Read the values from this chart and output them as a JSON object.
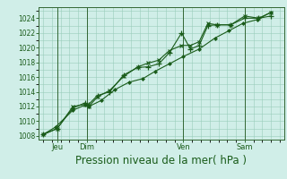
{
  "bg_color": "#d0eee8",
  "grid_color": "#99ccbb",
  "line_color": "#1a5c1a",
  "marker_color": "#1a5c1a",
  "xlabel": "Pression niveau de la mer( hPa )",
  "xlabel_fontsize": 8.5,
  "ylim": [
    1007.5,
    1025.5
  ],
  "yticks": [
    1008,
    1010,
    1012,
    1014,
    1016,
    1018,
    1020,
    1022,
    1024
  ],
  "day_labels": [
    "Jeu",
    "Dim",
    "Ven",
    "Sam"
  ],
  "day_positions": [
    16,
    50,
    160,
    230
  ],
  "vline_color": "#336633",
  "tick_color": "#1a5c1a",
  "axis_color": "#336633",
  "series1_x": [
    0,
    16,
    34,
    48,
    52,
    62,
    76,
    92,
    108,
    120,
    132,
    144,
    158,
    168,
    178,
    188,
    198,
    214,
    230,
    246,
    260
  ],
  "series1_y": [
    1008.2,
    1009.0,
    1011.8,
    1012.5,
    1012.3,
    1013.5,
    1014.0,
    1016.3,
    1017.3,
    1017.4,
    1017.8,
    1019.3,
    1022.0,
    1019.8,
    1020.3,
    1023.0,
    1023.1,
    1023.1,
    1024.0,
    1024.0,
    1024.3
  ],
  "series2_x": [
    0,
    16,
    34,
    48,
    52,
    62,
    76,
    92,
    108,
    120,
    132,
    144,
    158,
    168,
    178,
    188,
    198,
    214,
    230,
    246,
    260
  ],
  "series2_y": [
    1008.2,
    1009.0,
    1012.0,
    1012.3,
    1012.0,
    1013.3,
    1014.2,
    1016.1,
    1017.4,
    1017.9,
    1018.3,
    1019.6,
    1020.3,
    1020.3,
    1020.8,
    1023.3,
    1023.1,
    1023.1,
    1024.3,
    1024.0,
    1024.8
  ],
  "series3_x": [
    0,
    14,
    34,
    48,
    52,
    66,
    82,
    98,
    114,
    128,
    144,
    160,
    178,
    196,
    212,
    228,
    244,
    260
  ],
  "series3_y": [
    1008.2,
    1009.2,
    1011.5,
    1012.2,
    1012.0,
    1012.8,
    1014.3,
    1015.3,
    1015.8,
    1016.8,
    1017.8,
    1018.8,
    1019.8,
    1021.3,
    1022.3,
    1023.3,
    1023.8,
    1024.8
  ],
  "vline_x": [
    16,
    50,
    160,
    230
  ],
  "xlim": [
    -5,
    275
  ]
}
